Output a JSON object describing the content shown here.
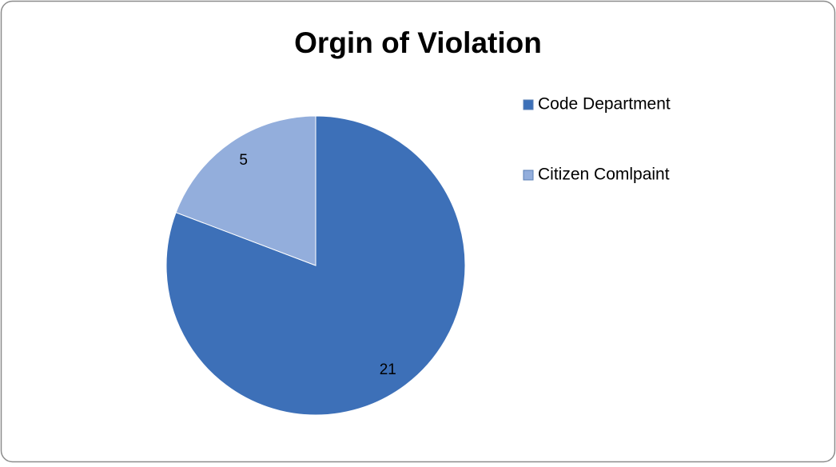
{
  "chart_data": {
    "type": "pie",
    "title": "Orgin of Violation",
    "categories": [
      "Code Department",
      "Citizen Comlpaint"
    ],
    "values": [
      21,
      5
    ],
    "colors": [
      "#3d70b8",
      "#93aedc"
    ],
    "legend": "right"
  }
}
